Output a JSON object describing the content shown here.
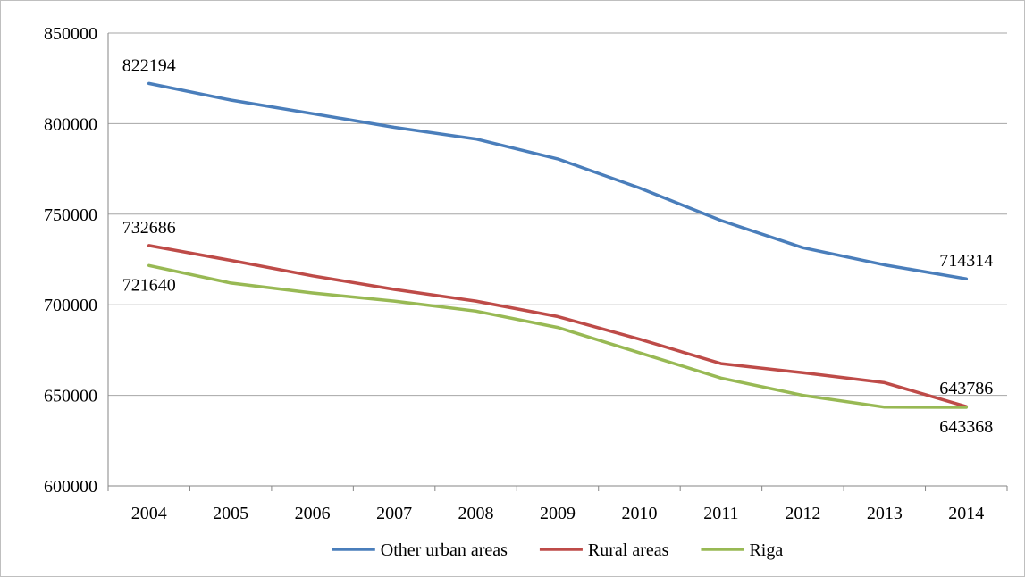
{
  "chart_data": {
    "type": "line",
    "title": "",
    "xlabel": "",
    "ylabel": "",
    "x": [
      "2004",
      "2005",
      "2006",
      "2007",
      "2008",
      "2009",
      "2010",
      "2011",
      "2012",
      "2013",
      "2014"
    ],
    "ylim": [
      600000,
      850000
    ],
    "yticks": [
      600000,
      650000,
      700000,
      750000,
      800000,
      850000
    ],
    "ytick_labels": [
      "600000",
      "650000",
      "700000",
      "750000",
      "800000",
      "850000"
    ],
    "grid": "horizontal",
    "legend_position": "bottom",
    "series": [
      {
        "name": "Other urban areas",
        "color": "#4a7ebb",
        "values": [
          822194,
          813000,
          805500,
          798000,
          791500,
          780500,
          764500,
          746500,
          731500,
          722000,
          714314
        ]
      },
      {
        "name": "Rural areas",
        "color": "#be4b48",
        "values": [
          732686,
          724500,
          716000,
          708500,
          702000,
          693500,
          681000,
          667500,
          662500,
          657000,
          643786
        ]
      },
      {
        "name": "Riga",
        "color": "#98b954",
        "values": [
          721640,
          712000,
          706500,
          702000,
          696500,
          687500,
          673500,
          659500,
          650000,
          643500,
          643368
        ]
      }
    ],
    "data_labels": [
      {
        "series": 0,
        "index": 0,
        "text": "822194",
        "pos": "above"
      },
      {
        "series": 1,
        "index": 0,
        "text": "732686",
        "pos": "above"
      },
      {
        "series": 2,
        "index": 0,
        "text": "721640",
        "pos": "below"
      },
      {
        "series": 0,
        "index": 10,
        "text": "714314",
        "pos": "above"
      },
      {
        "series": 1,
        "index": 10,
        "text": "643786",
        "pos": "above"
      },
      {
        "series": 2,
        "index": 10,
        "text": "643368",
        "pos": "below"
      }
    ]
  }
}
